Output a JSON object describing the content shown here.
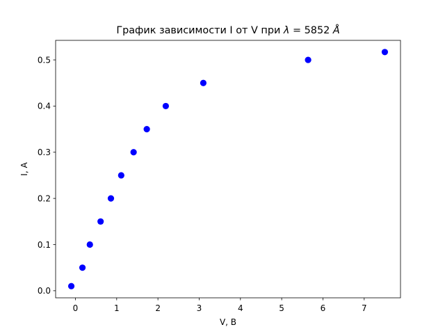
{
  "chart_data": {
    "type": "scatter",
    "title": "График зависимости I от V при λ = 5852 Å",
    "title_parts": {
      "prefix": "График зависимости I от V при ",
      "symbol": "λ",
      "middle": " = 5852 ",
      "unit": "Å"
    },
    "xlabel": "V, В",
    "ylabel": "I, А",
    "xlim": [
      -0.48,
      7.88
    ],
    "ylim": [
      -0.0153,
      0.5423
    ],
    "xticks": [
      0,
      1,
      2,
      3,
      4,
      5,
      6,
      7
    ],
    "xtick_labels": [
      "0",
      "1",
      "2",
      "3",
      "4",
      "5",
      "6",
      "7"
    ],
    "yticks": [
      0.0,
      0.1,
      0.2,
      0.3,
      0.4,
      0.5
    ],
    "ytick_labels": [
      "0.0",
      "0.1",
      "0.2",
      "0.3",
      "0.4",
      "0.5"
    ],
    "grid": false,
    "marker_color": "#0000ff",
    "series": [
      {
        "x": [
          -0.1,
          0.17,
          0.35,
          0.61,
          0.86,
          1.11,
          1.41,
          1.73,
          2.19,
          3.1,
          5.64,
          7.5
        ],
        "y": [
          0.01,
          0.05,
          0.1,
          0.15,
          0.2,
          0.25,
          0.3,
          0.35,
          0.4,
          0.45,
          0.5,
          0.517
        ]
      }
    ]
  }
}
